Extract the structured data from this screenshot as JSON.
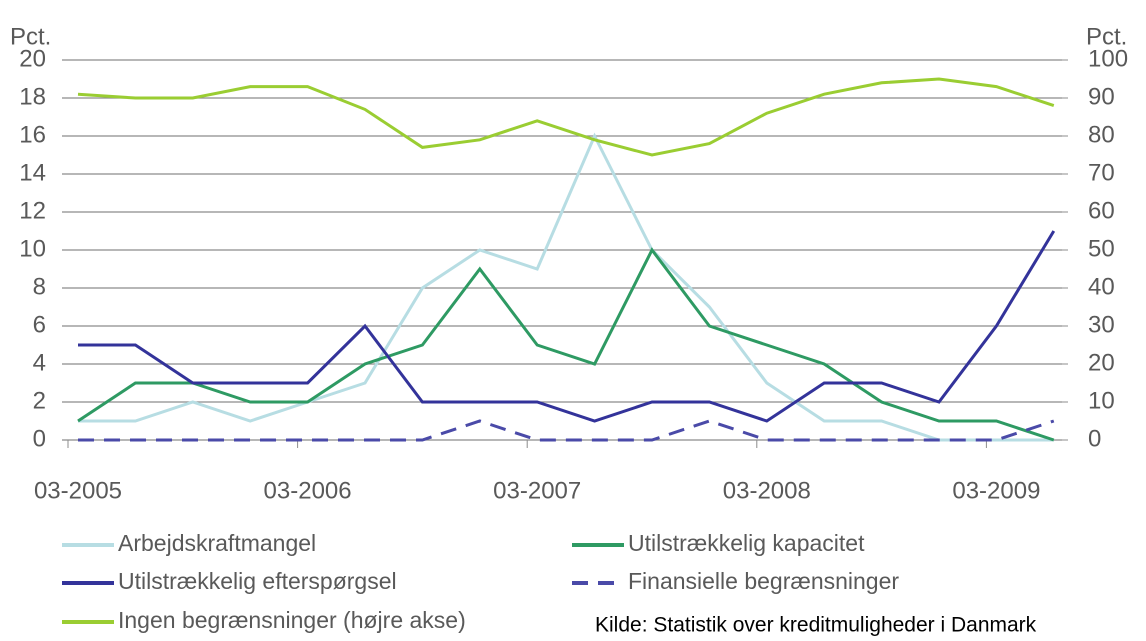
{
  "chart_data": {
    "type": "line",
    "ylabel": "Pct.",
    "y2label": "Pct.",
    "source": "Kilde: Statistik over kreditmuligheder i Danmark",
    "categories": [
      "03-2005",
      null,
      null,
      null,
      "03-2006",
      null,
      null,
      null,
      "03-2007",
      null,
      null,
      null,
      "03-2008",
      null,
      null,
      null,
      "03-2009",
      null
    ],
    "ylim": [
      0,
      20
    ],
    "yticks": [
      0,
      2,
      4,
      6,
      8,
      10,
      12,
      14,
      16,
      18,
      20
    ],
    "y2lim": [
      0,
      100
    ],
    "y2ticks": [
      0,
      10,
      20,
      30,
      40,
      50,
      60,
      70,
      80,
      90,
      100
    ],
    "grid": true,
    "series": [
      {
        "name": "Arbejdskraftmangel",
        "color": "#b7dde3",
        "dashed": false,
        "values": [
          1,
          1,
          2,
          1,
          2,
          3,
          8,
          10,
          9,
          16,
          10,
          7,
          3,
          1,
          1,
          0,
          0,
          0
        ]
      },
      {
        "name": "Utilstrækkelig kapacitet",
        "color": "#2e9a63",
        "dashed": false,
        "values": [
          1,
          3,
          3,
          2,
          2,
          4,
          5,
          9,
          5,
          4,
          10,
          6,
          5,
          4,
          2,
          1,
          1,
          0
        ]
      },
      {
        "name": "Utilstrækkelig efterspørgsel",
        "color": "#33339a",
        "dashed": false,
        "values": [
          5,
          5,
          3,
          3,
          3,
          6,
          2,
          2,
          2,
          1,
          2,
          2,
          1,
          3,
          3,
          2,
          6,
          11
        ]
      },
      {
        "name": "Finansielle begrænsninger",
        "color": "#4a4aa8",
        "dashed": true,
        "values": [
          0,
          0,
          0,
          0,
          0,
          0,
          0,
          1,
          0,
          0,
          0,
          1,
          0,
          0,
          0,
          0,
          0,
          1
        ]
      },
      {
        "name": "Ingen begrænsninger (højre akse)",
        "color": "#9acd32",
        "dashed": false,
        "axis": "y2",
        "values": [
          91,
          90,
          90,
          93,
          93,
          87,
          77,
          79,
          84,
          79,
          75,
          78,
          86,
          91,
          94,
          95,
          93,
          88
        ]
      }
    ]
  }
}
